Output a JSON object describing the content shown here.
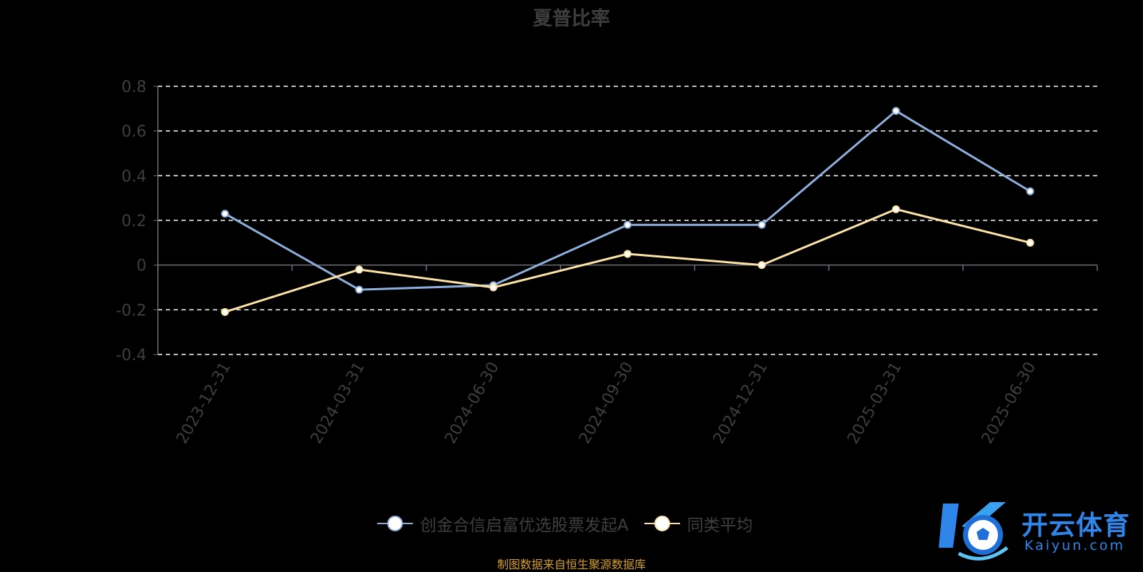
{
  "chart_data": {
    "type": "line",
    "title": "夏普比率",
    "categories": [
      "2023-12-31",
      "2024-03-31",
      "2024-06-30",
      "2024-09-30",
      "2024-12-31",
      "2025-03-31",
      "2025-06-30"
    ],
    "ylim": [
      -0.4,
      0.8
    ],
    "yticks": [
      "0.8",
      "0.6",
      "0.4",
      "0.2",
      "0",
      "-0.2",
      "-0.4"
    ],
    "ytick_values": [
      0.8,
      0.6,
      0.4,
      0.2,
      0,
      -0.2,
      -0.4
    ],
    "grid": "dashed-horizontal",
    "legend_position": "bottom-center",
    "series": [
      {
        "name": "创金合信启富优选股票发起A",
        "color": "#8fb0dc",
        "values": [
          0.23,
          -0.11,
          -0.09,
          0.18,
          0.18,
          0.69,
          0.33
        ]
      },
      {
        "name": "同类平均",
        "color": "#fbe3a6",
        "values": [
          -0.21,
          -0.02,
          -0.1,
          0.05,
          0.0,
          0.25,
          0.1
        ]
      }
    ]
  },
  "footer": {
    "source_note": "制图数据来自恒生聚源数据库"
  },
  "watermark": {
    "brand": "开云体育",
    "domain": "Kaiyun.com"
  }
}
